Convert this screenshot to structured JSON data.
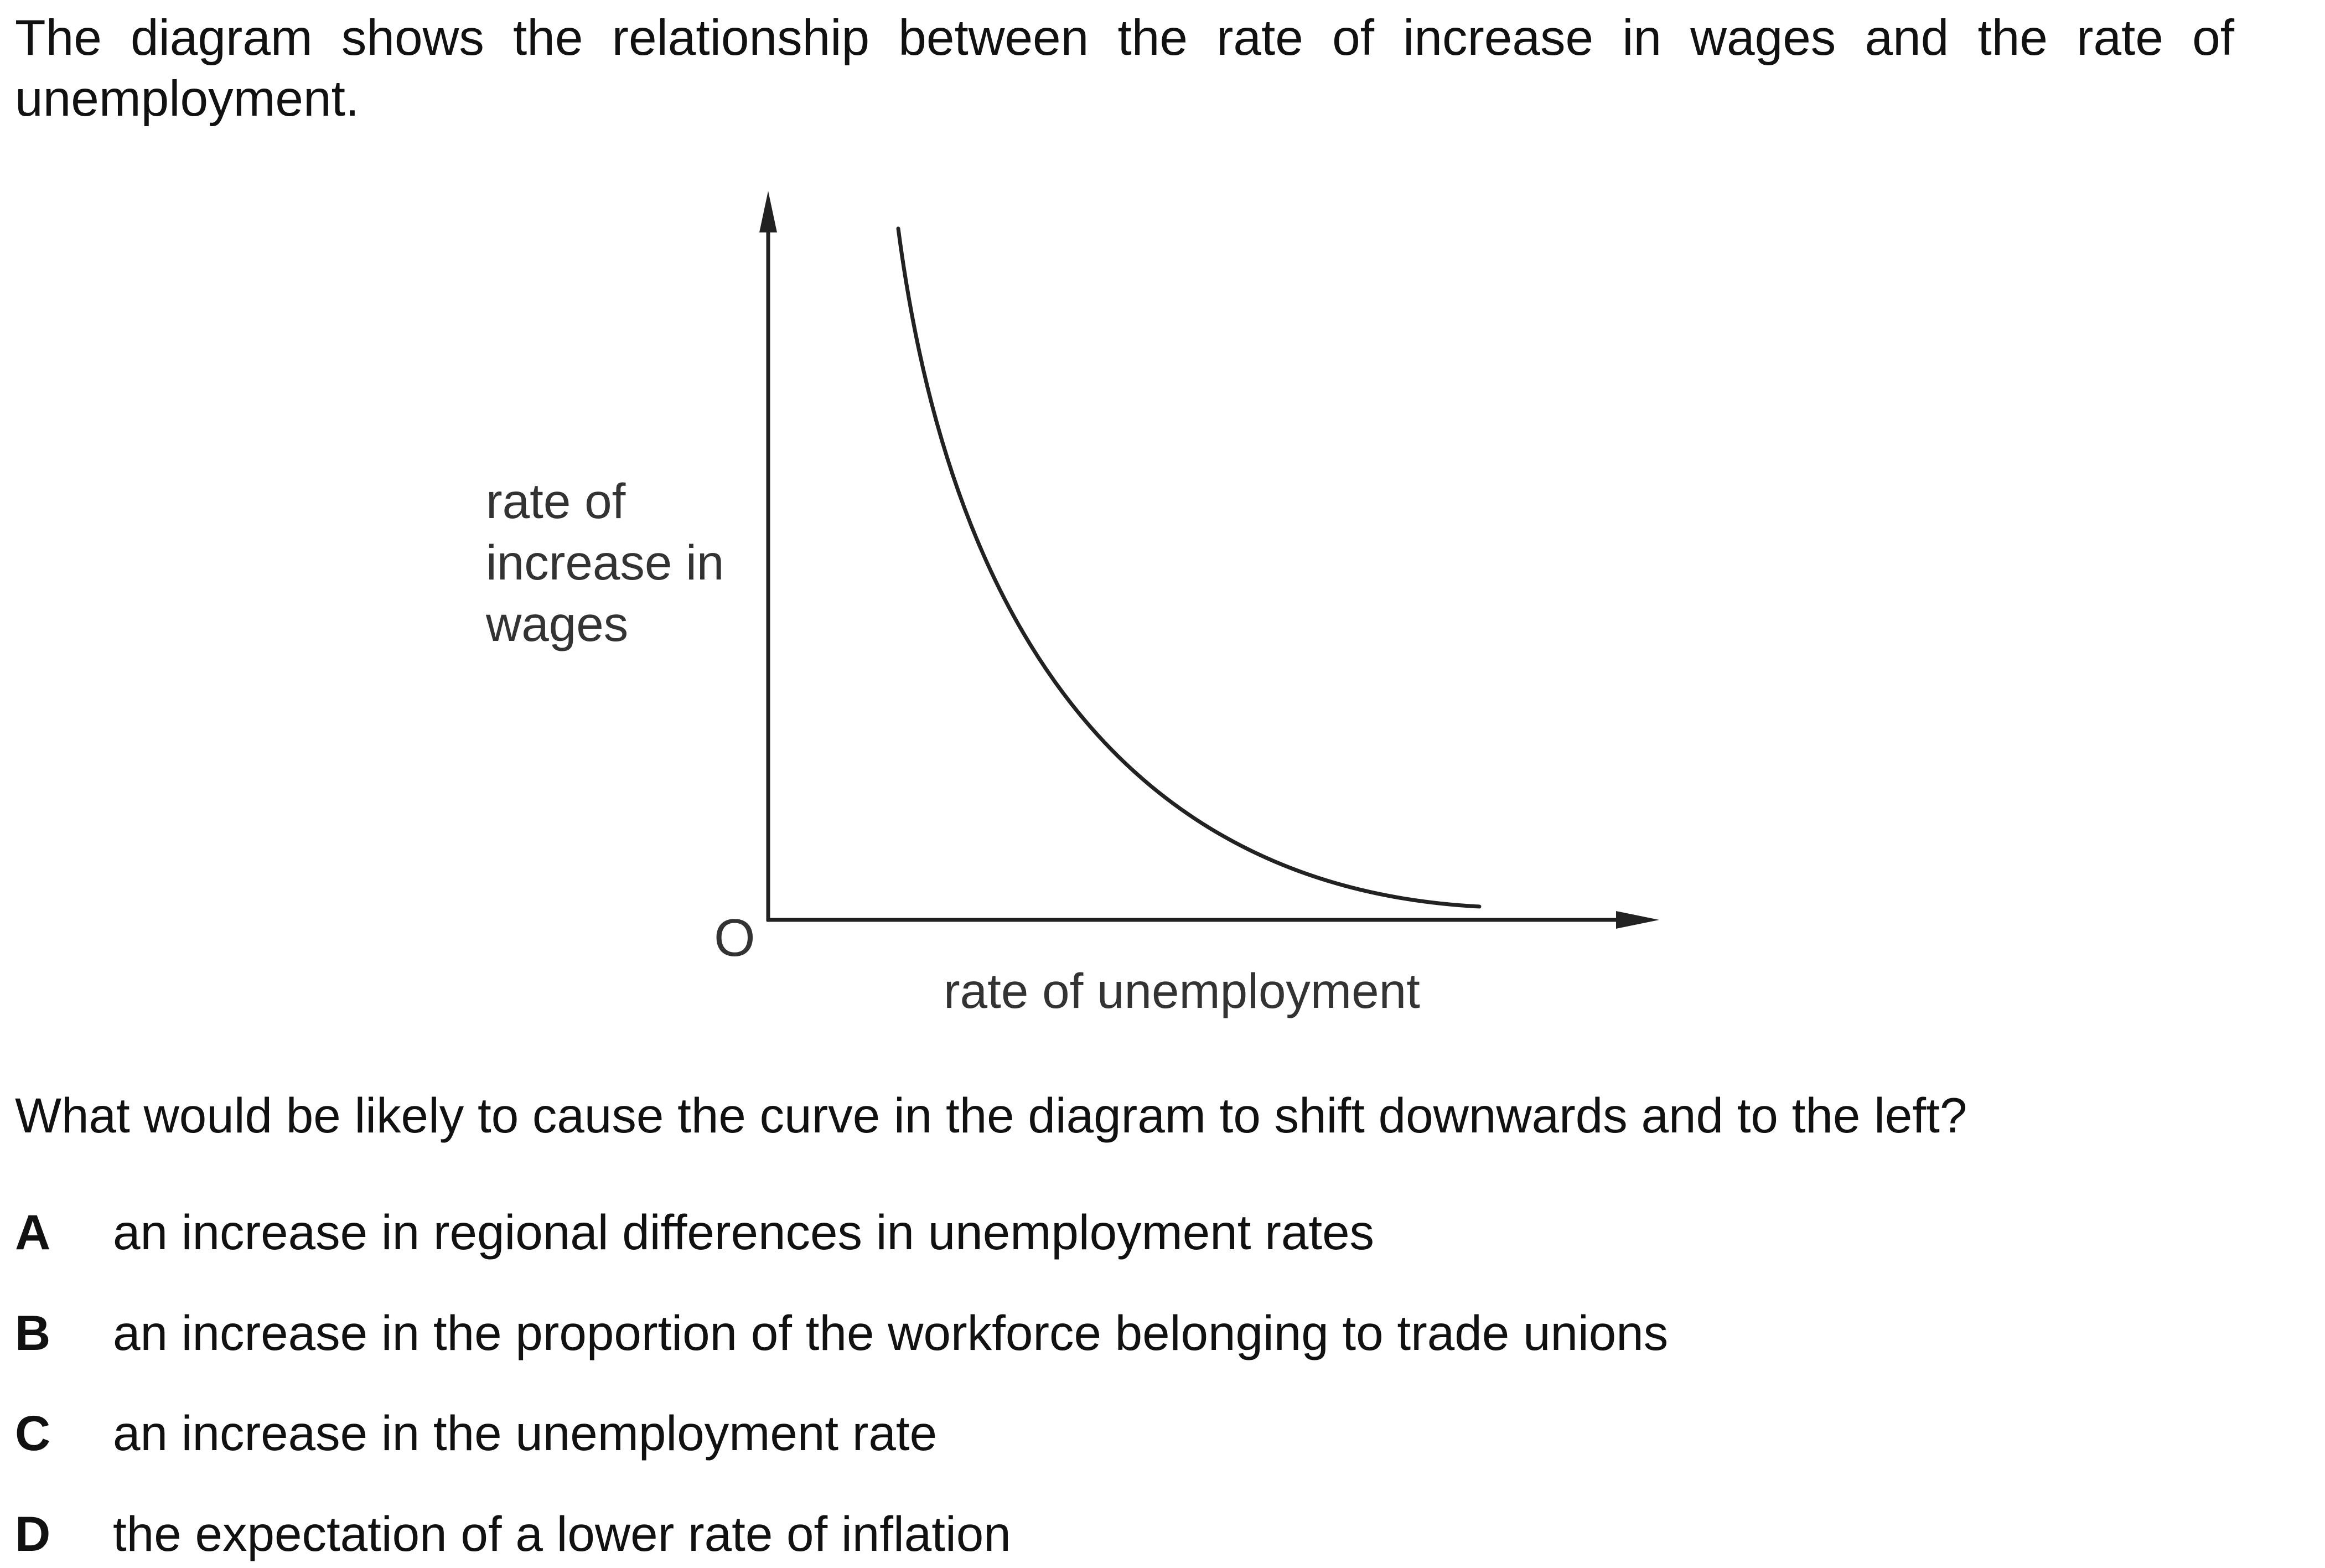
{
  "intro_text": "The diagram shows the relationship between the rate of increase in wages and the rate of unemployment.",
  "diagram": {
    "y_axis_label": "rate of\nincrease in\nwages",
    "x_axis_label": "rate of unemployment",
    "origin_label": "O",
    "line_color": "#222222"
  },
  "question_text": "What would be likely to cause the curve in the diagram to shift downwards and to the left?",
  "options": [
    {
      "letter": "A",
      "text": "an increase in regional differences in unemployment rates"
    },
    {
      "letter": "B",
      "text": "an increase in the proportion of the workforce belonging to trade unions"
    },
    {
      "letter": "C",
      "text": "an increase in the unemployment rate"
    },
    {
      "letter": "D",
      "text": "the expectation of a lower rate of inflation"
    }
  ]
}
